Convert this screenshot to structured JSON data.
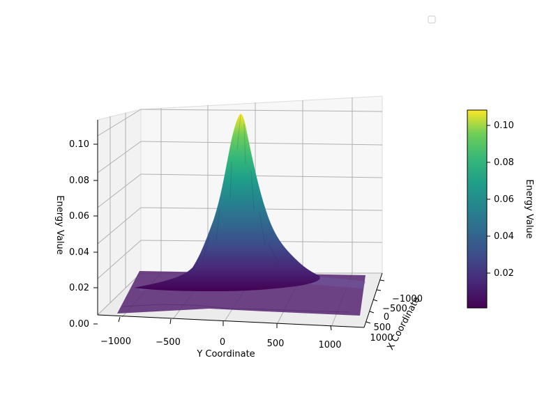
{
  "chart_data": {
    "type": "surface3d",
    "title": "",
    "xlabel": "X Coordinate",
    "ylabel": "Y Coordinate",
    "zlabel": "Energy Value",
    "x_ticks": [
      "−1000",
      "−500",
      "0",
      "500",
      "1000"
    ],
    "y_ticks": [
      "−1000",
      "−500",
      "0",
      "500",
      "1000"
    ],
    "z_ticks": [
      "0.00",
      "0.02",
      "0.04",
      "0.06",
      "0.08",
      "0.10"
    ],
    "xlim": [
      -1250,
      1250
    ],
    "ylim": [
      -1250,
      1250
    ],
    "zlim": [
      0,
      0.11
    ],
    "colormap": "viridis",
    "surface": {
      "shape": "gaussian peak centered near origin",
      "center": [
        0,
        0
      ],
      "peak_value": 0.108,
      "baseline": 0.002,
      "spread_sigma": 180
    },
    "colorbar": {
      "label": "Energy Value",
      "ticks": [
        "0.02",
        "0.04",
        "0.06",
        "0.08",
        "0.10"
      ],
      "range": [
        0.001,
        0.108
      ]
    },
    "legend": {
      "entries": [],
      "placement": "upper-right"
    }
  }
}
